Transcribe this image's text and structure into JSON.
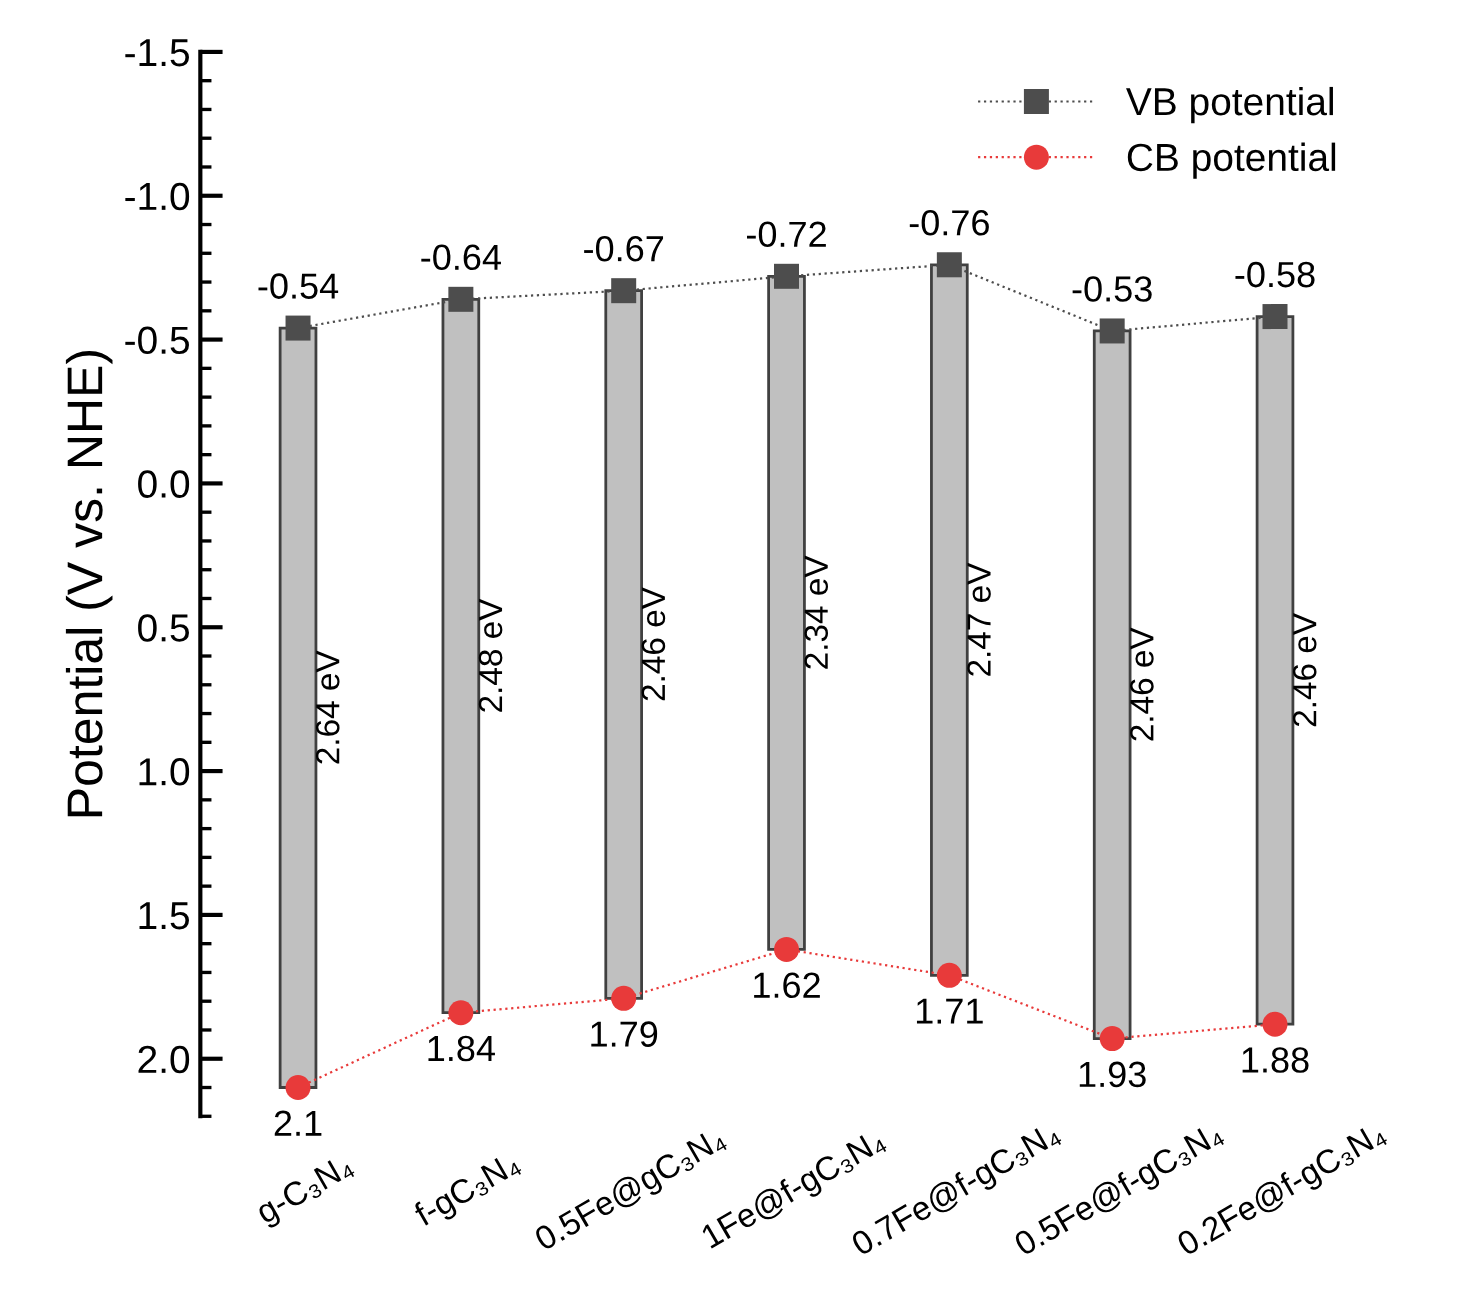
{
  "chart_data": {
    "type": "bar",
    "ylabel": "Potential (V vs. NHE)",
    "categories": [
      "g-C₃N₄",
      "f-gC₃N₄",
      "0.5Fe@gC₃N₄",
      "1Fe@f-gC₃N₄",
      "0.7Fe@f-gC₃N₄",
      "0.5Fe@f-gC₃N₄",
      "0.2Fe@f-gC₃N₄"
    ],
    "series": [
      {
        "color": "#c0c0c0",
        "base": [
          -0.54,
          -0.64,
          -0.67,
          -0.72,
          -0.76,
          -0.53,
          -0.58
        ],
        "values": [
          2.64,
          2.48,
          2.46,
          2.34,
          2.47,
          2.46,
          2.46
        ],
        "value_labels": [
          "2.64 eV",
          "2.48 eV",
          "2.46 eV",
          "2.34 eV",
          "2.47 eV",
          "2.46 eV",
          "2.46 eV"
        ]
      },
      {
        "type": "line",
        "name": "VB potential",
        "color": "#4d4d4d",
        "marker": "square",
        "line_style": "dotted",
        "values": [
          -0.54,
          -0.64,
          -0.67,
          -0.72,
          -0.76,
          -0.53,
          -0.58
        ],
        "value_labels": [
          "-0.54",
          "-0.64",
          "-0.67",
          "-0.72",
          "-0.76",
          "-0.53",
          "-0.58"
        ]
      },
      {
        "type": "line",
        "name": "CB potential",
        "color": "#e83a3a",
        "marker": "circle",
        "line_style": "dotted",
        "values": [
          2.1,
          1.84,
          1.79,
          1.62,
          1.71,
          1.93,
          1.88
        ],
        "value_labels": [
          "2.1",
          "1.84",
          "1.79",
          "1.62",
          "1.71",
          "1.93",
          "1.88"
        ]
      }
    ],
    "ylim": [
      2.2,
      -1.5
    ],
    "yticks": [
      {
        "value": -1.5,
        "label": "-1.5"
      },
      {
        "value": -1.0,
        "label": "-1.0"
      },
      {
        "value": -0.5,
        "label": "-0.5"
      },
      {
        "value": 0.0,
        "label": "0.0"
      },
      {
        "value": 0.5,
        "label": "0.5"
      },
      {
        "value": 1.0,
        "label": "1.0"
      },
      {
        "value": 1.5,
        "label": "1.5"
      },
      {
        "value": 2.0,
        "label": "2.0"
      }
    ],
    "legend": "top right",
    "grid": false
  }
}
